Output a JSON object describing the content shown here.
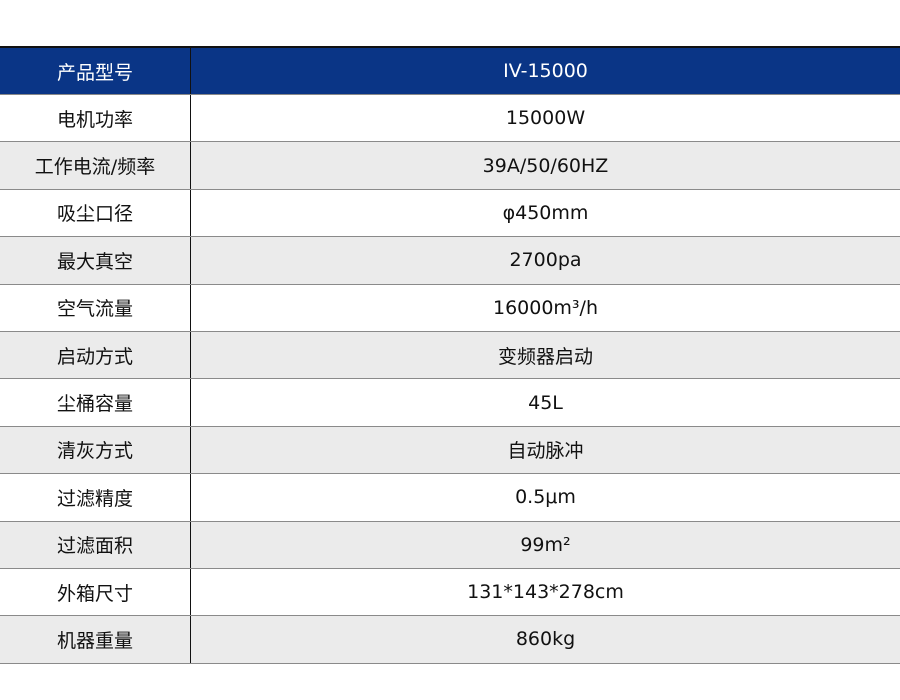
{
  "header": {
    "label": "产品型号",
    "value": "IV-15000"
  },
  "rows": [
    {
      "label": "电机功率",
      "value": "15000W"
    },
    {
      "label": "工作电流/频率",
      "value": "39A/50/60HZ"
    },
    {
      "label": "吸尘口径",
      "value": "φ450mm"
    },
    {
      "label": "最大真空",
      "value": "2700pa"
    },
    {
      "label": "空气流量",
      "value": "16000m³/h"
    },
    {
      "label": "启动方式",
      "value": "变频器启动"
    },
    {
      "label": "尘桶容量",
      "value": "45L"
    },
    {
      "label": "清灰方式",
      "value": "自动脉冲"
    },
    {
      "label": "过滤精度",
      "value": "0.5μm"
    },
    {
      "label": "过滤面积",
      "value": "99m²"
    },
    {
      "label": "外箱尺寸",
      "value": "131*143*278cm"
    },
    {
      "label": "机器重量",
      "value": "860kg"
    }
  ],
  "colors": {
    "header_bg": "#0a3586",
    "stripe": "#ebebeb"
  }
}
